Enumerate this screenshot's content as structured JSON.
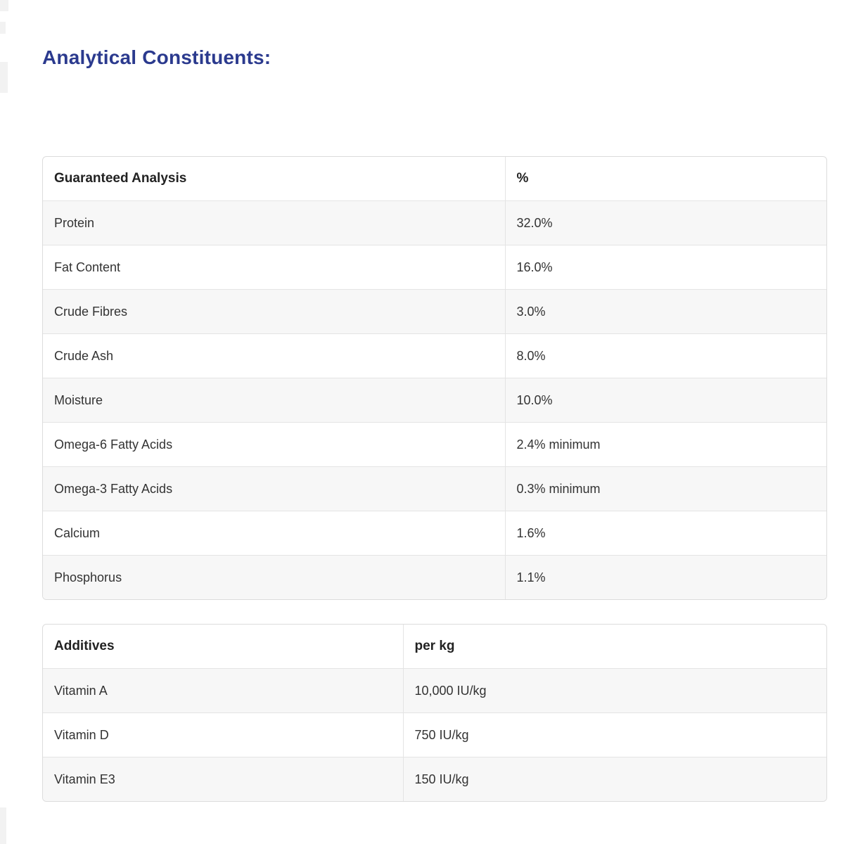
{
  "page": {
    "title": "Analytical Constituents:"
  },
  "tables": [
    {
      "name": "guaranteed-analysis",
      "headers": [
        "Guaranteed Analysis",
        "%"
      ],
      "rows": [
        [
          "Protein",
          "32.0%"
        ],
        [
          "Fat Content",
          "16.0%"
        ],
        [
          "Crude Fibres",
          "3.0%"
        ],
        [
          "Crude Ash",
          "8.0%"
        ],
        [
          "Moisture",
          "10.0%"
        ],
        [
          "Omega-6 Fatty Acids",
          "2.4% minimum"
        ],
        [
          "Omega-3 Fatty Acids",
          "0.3% minimum"
        ],
        [
          "Calcium",
          "1.6%"
        ],
        [
          "Phosphorus",
          "1.1%"
        ]
      ]
    },
    {
      "name": "additives",
      "headers": [
        "Additives",
        "per kg"
      ],
      "rows": [
        [
          "Vitamin A",
          "10,000 IU/kg"
        ],
        [
          "Vitamin D",
          "750 IU/kg"
        ],
        [
          "Vitamin E3",
          "150 IU/kg"
        ]
      ]
    }
  ],
  "colors": {
    "title_text": "#2b3a8e",
    "header_text": "#222222",
    "body_text": "#333333",
    "row_stripe": "#f7f7f7",
    "table_border": "#dcdcdc"
  }
}
